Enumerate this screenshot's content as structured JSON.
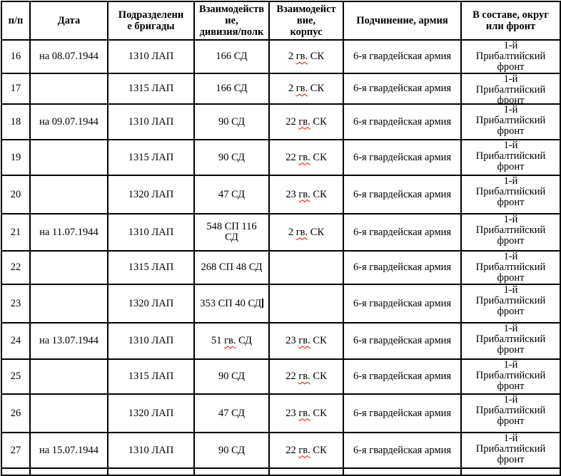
{
  "document": {
    "background_color": "#ffffff",
    "text_color": "#000000",
    "border_color": "#000000",
    "spellcheck_underline_color": "#ff0000"
  },
  "table": {
    "headers": [
      {
        "key": "num",
        "label": "п/п"
      },
      {
        "key": "date",
        "label": "Дата"
      },
      {
        "key": "unit",
        "label": "Подразделени\nе бригады"
      },
      {
        "key": "division",
        "label": "Взаимодейств\nие,\nдивизия/полк"
      },
      {
        "key": "corps",
        "label": "Взаимодейст\nвие,\nкорпус"
      },
      {
        "key": "army",
        "label": "Подчинение, армия"
      },
      {
        "key": "front",
        "label": "В составе, округ\nили фронт"
      }
    ],
    "rows": [
      {
        "num": "16",
        "date": "на 08.07.1944",
        "unit": "1310 ЛАП",
        "division": [
          {
            "t": "166 СД"
          }
        ],
        "corps": [
          {
            "t": "2 "
          },
          {
            "t": "гв.",
            "misspelled": true
          },
          {
            "t": " СК"
          }
        ],
        "army": "6-я гвардейская армия",
        "front": "1-й\nПрибалтийский\nфронт"
      },
      {
        "num": "17",
        "date": "",
        "unit": "1315 ЛАП",
        "division": [
          {
            "t": "166 СД"
          }
        ],
        "corps": [
          {
            "t": "2 "
          },
          {
            "t": "гв.",
            "misspelled": true
          },
          {
            "t": " СК"
          }
        ],
        "army": "6-я гвардейская армия",
        "front": "1-й\nПрибалтийский\nфронт"
      },
      {
        "num": "18",
        "date": "на 09.07.1944",
        "unit": "1310 ЛАП",
        "division": [
          {
            "t": "90 СД"
          }
        ],
        "corps": [
          {
            "t": "22 "
          },
          {
            "t": "гв.",
            "misspelled": true
          },
          {
            "t": " СК"
          }
        ],
        "army": "6-я гвардейская армия",
        "front": "1-й\nПрибалтийский\nфронт"
      },
      {
        "num": "19",
        "date": "",
        "unit": "1315 ЛАП",
        "division": [
          {
            "t": "90 СД"
          }
        ],
        "corps": [
          {
            "t": "22 "
          },
          {
            "t": "гв.",
            "misspelled": true
          },
          {
            "t": " СК"
          }
        ],
        "army": "6-я гвардейская армия",
        "front": "1-й\nПрибалтийский\nфронт"
      },
      {
        "num": "20",
        "date": "",
        "unit": "1320 ЛАП",
        "division": [
          {
            "t": "47 СД"
          }
        ],
        "corps": [
          {
            "t": "23 "
          },
          {
            "t": "гв.",
            "misspelled": true
          },
          {
            "t": " СК"
          }
        ],
        "army": "6-я гвардейская армия",
        "front": "1-й\nПрибалтийский\nфронт"
      },
      {
        "num": "21",
        "date": "на 11.07.1944",
        "unit": "1310 ЛАП",
        "division": [
          {
            "t": "548 СП 116\nСД"
          }
        ],
        "corps": [
          {
            "t": "2 "
          },
          {
            "t": "гв.",
            "misspelled": true
          },
          {
            "t": " СК"
          }
        ],
        "army": "6-я гвардейская армия",
        "front": "1-й\nПрибалтийский\nфронт"
      },
      {
        "num": "22",
        "date": "",
        "unit": "1315 ЛАП",
        "division": [
          {
            "t": "268 СП 48 СД"
          }
        ],
        "corps": [],
        "army": "6-я гвардейская армия",
        "front": "1-й\nПрибалтийский\nфронт"
      },
      {
        "num": "23",
        "date": "",
        "unit": "1320 ЛАП",
        "division": [
          {
            "t": "353 СП 40 СД"
          },
          {
            "caret": true
          }
        ],
        "corps": [],
        "army": "6-я гвардейская армия",
        "front": "1-й\nПрибалтийский\nфронт"
      },
      {
        "num": "24",
        "date": "на 13.07.1944",
        "unit": "1310 ЛАП",
        "division": [
          {
            "t": "51 "
          },
          {
            "t": "гв.",
            "misspelled": true
          },
          {
            "t": " СД"
          }
        ],
        "corps": [
          {
            "t": "23 "
          },
          {
            "t": "гв.",
            "misspelled": true
          },
          {
            "t": " СК"
          }
        ],
        "army": "6-я гвардейская армия",
        "front": "1-й\nПрибалтийский\nфронт"
      },
      {
        "num": "25",
        "date": "",
        "unit": "1315 ЛАП",
        "division": [
          {
            "t": "90 СД"
          }
        ],
        "corps": [
          {
            "t": "22 "
          },
          {
            "t": "гв.",
            "misspelled": true
          },
          {
            "t": " СК"
          }
        ],
        "army": "6-я гвардейская армия",
        "front": "1-й\nПрибалтийский\nфронт"
      },
      {
        "num": "26",
        "date": "",
        "unit": "1320 ЛАП",
        "division": [
          {
            "t": "47 СД"
          }
        ],
        "corps": [
          {
            "t": "23 "
          },
          {
            "t": "гв.",
            "misspelled": true
          },
          {
            "t": " СК"
          }
        ],
        "army": "6-я гвардейская армия",
        "front": "1-й\nПрибалтийский\nфронт"
      },
      {
        "num": "27",
        "date": "на 15.07.1944",
        "unit": "1310 ЛАП",
        "division": [
          {
            "t": "90 СД"
          }
        ],
        "corps": [
          {
            "t": "22 "
          },
          {
            "t": "гв.",
            "misspelled": true
          },
          {
            "t": " СК"
          }
        ],
        "army": "6-я гвардейская армия",
        "front": "1-й\nПрибалтийский\nфронт"
      }
    ],
    "has_partial_next_row": true
  }
}
